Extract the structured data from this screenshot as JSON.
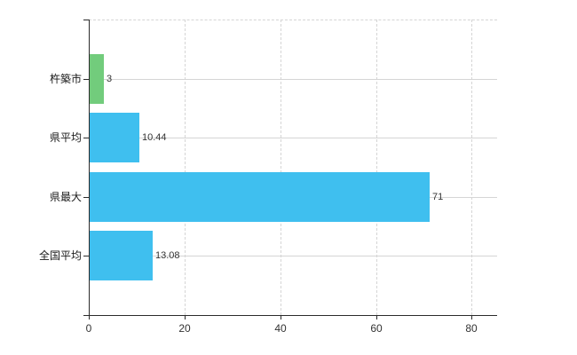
{
  "chart_data": {
    "type": "bar",
    "orientation": "horizontal",
    "title": "",
    "xlabel": "",
    "ylabel": "",
    "categories": [
      "杵築市",
      "県平均",
      "県最大",
      "全国平均"
    ],
    "values": [
      3,
      10.44,
      71,
      13.08
    ],
    "value_labels": [
      "3",
      "10.44",
      "71",
      "13.08"
    ],
    "bar_colors": [
      "#72cc7c",
      "#3fbfef",
      "#3fbfef",
      "#3fbfef"
    ],
    "x_ticks": [
      0,
      20,
      40,
      60,
      80
    ],
    "x_tick_labels": [
      "0",
      "20",
      "40",
      "60",
      "80"
    ],
    "xlim": [
      0,
      85.3
    ],
    "grid": true,
    "gridline_style": {
      "vertical": "dashed",
      "horizontal": "solid",
      "top_border": "dashed"
    },
    "legend": "none",
    "colors": {
      "background": "#ffffff",
      "axis": "#2b2b2b",
      "grid": "#d5d5d5",
      "category_text": "#1a1a1a",
      "tick_text": "#333333",
      "value_text": "#333333",
      "green_bar": "#72cc7c",
      "blue_bar": "#3fbfef"
    }
  }
}
